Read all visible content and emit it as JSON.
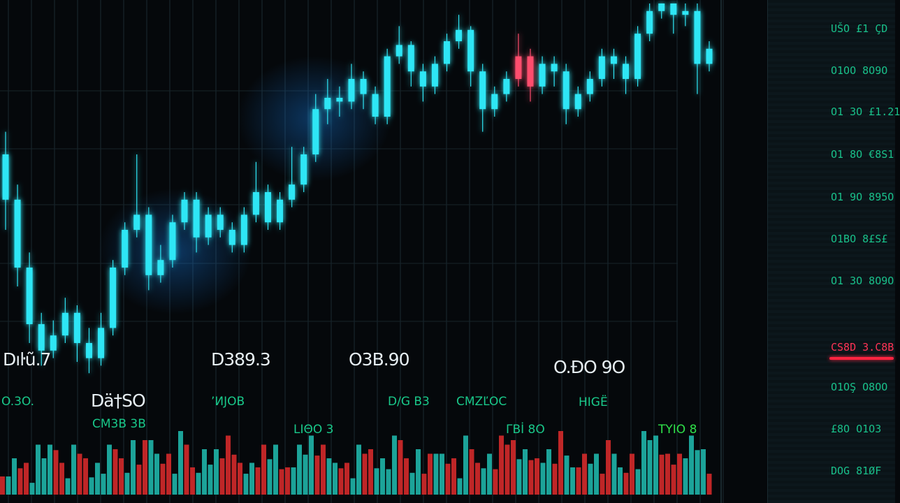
{
  "chart_data": {
    "type": "candlestick",
    "title": "",
    "xlabel": "",
    "ylabel": "",
    "ylim": [
      0,
      100
    ],
    "grid": true,
    "colors": {
      "up": "#2ee6f5",
      "down": "#ff4d6d",
      "volume_up": "#1fb5a8",
      "volume_down": "#d42a2a",
      "background": "#05080b"
    },
    "candles": [
      [
        60,
        66,
        40,
        48
      ],
      [
        48,
        52,
        25,
        30
      ],
      [
        30,
        34,
        10,
        15
      ],
      [
        15,
        18,
        4,
        8
      ],
      [
        8,
        16,
        6,
        12
      ],
      [
        12,
        22,
        10,
        18
      ],
      [
        18,
        20,
        5,
        10
      ],
      [
        10,
        14,
        2,
        6
      ],
      [
        6,
        18,
        4,
        14
      ],
      [
        14,
        32,
        12,
        30
      ],
      [
        30,
        42,
        28,
        40
      ],
      [
        40,
        60,
        38,
        44
      ],
      [
        44,
        46,
        24,
        28
      ],
      [
        28,
        36,
        26,
        32
      ],
      [
        32,
        44,
        30,
        42
      ],
      [
        42,
        50,
        40,
        48
      ],
      [
        48,
        50,
        34,
        38
      ],
      [
        38,
        46,
        36,
        44
      ],
      [
        44,
        46,
        38,
        40
      ],
      [
        40,
        42,
        34,
        36
      ],
      [
        36,
        46,
        34,
        44
      ],
      [
        44,
        58,
        42,
        50
      ],
      [
        50,
        52,
        40,
        42
      ],
      [
        42,
        50,
        40,
        48
      ],
      [
        48,
        62,
        46,
        52
      ],
      [
        52,
        62,
        50,
        60
      ],
      [
        60,
        76,
        58,
        72
      ],
      [
        72,
        80,
        68,
        75
      ],
      [
        75,
        78,
        70,
        74
      ],
      [
        74,
        84,
        72,
        80
      ],
      [
        80,
        82,
        72,
        76
      ],
      [
        76,
        78,
        68,
        70
      ],
      [
        70,
        88,
        68,
        86
      ],
      [
        86,
        94,
        84,
        89
      ],
      [
        89,
        90,
        78,
        82
      ],
      [
        82,
        84,
        74,
        78
      ],
      [
        78,
        86,
        76,
        84
      ],
      [
        84,
        92,
        82,
        90
      ],
      [
        90,
        97,
        88,
        93
      ],
      [
        93,
        94,
        78,
        82
      ],
      [
        82,
        84,
        66,
        72
      ],
      [
        72,
        78,
        70,
        76
      ],
      [
        76,
        82,
        74,
        80
      ],
      [
        80,
        92,
        78,
        86
      ],
      [
        86,
        88,
        74,
        78
      ],
      [
        78,
        86,
        76,
        84
      ],
      [
        84,
        86,
        78,
        82
      ],
      [
        82,
        84,
        68,
        72
      ],
      [
        72,
        78,
        70,
        76
      ],
      [
        76,
        82,
        74,
        80
      ],
      [
        80,
        88,
        78,
        86
      ],
      [
        86,
        88,
        80,
        84
      ],
      [
        84,
        86,
        76,
        80
      ],
      [
        80,
        94,
        78,
        92
      ],
      [
        92,
        100,
        90,
        98
      ],
      [
        98,
        102,
        96,
        100
      ],
      [
        100,
        102,
        92,
        97
      ],
      [
        97,
        100,
        94,
        98
      ],
      [
        98,
        100,
        76,
        84
      ],
      [
        84,
        90,
        82,
        88
      ]
    ],
    "down_candles": [
      43,
      44
    ],
    "volume": [
      20,
      35,
      25,
      40,
      55,
      30,
      45,
      25,
      35,
      50,
      30,
      45,
      60,
      40,
      35,
      55,
      30,
      45,
      40,
      50,
      35,
      30,
      45,
      40,
      30,
      50,
      55,
      40,
      35,
      30,
      45,
      35,
      40,
      60,
      30,
      35,
      45,
      40,
      30,
      50,
      35,
      40,
      55,
      45,
      50,
      35,
      40,
      55,
      30,
      40,
      35,
      45,
      30,
      40,
      60,
      50,
      45,
      40,
      55,
      35
    ],
    "volume_colors": [
      "d",
      "u",
      "d",
      "u",
      "u",
      "d",
      "u",
      "d",
      "u",
      "u",
      "d",
      "u",
      "d",
      "u",
      "d",
      "u",
      "d",
      "u",
      "u",
      "d",
      "d",
      "u",
      "d",
      "u",
      "d",
      "u",
      "u",
      "d",
      "u",
      "d",
      "u",
      "d",
      "u",
      "u",
      "d",
      "u",
      "d",
      "u",
      "d",
      "u",
      "d",
      "u",
      "d",
      "d",
      "u",
      "d",
      "u",
      "d",
      "u",
      "d",
      "u",
      "d",
      "u",
      "d",
      "u",
      "u",
      "d",
      "d",
      "u",
      "u"
    ]
  },
  "overlay_labels": {
    "big": [
      "Dıŀũ.7",
      "D389.3",
      "O3B.90",
      "O.ÐO 9O",
      "Dä†SO"
    ],
    "green": [
      "O.3O.",
      "ʼИJOB",
      "CM3B 3B",
      "D/G B3",
      "CMZĽOC",
      "HIGË",
      "LIΘO 3",
      "ΓBİ 8O"
    ],
    "lime": [
      "TYIO 8"
    ]
  },
  "price_panel": {
    "labels": [
      "UŠO £1 ÇD",
      "O1OO 8O9O",
      "O1 3O £1.21",
      "O1 8O €8S1",
      "O1 9O 895O",
      "O1BO 8£S£",
      "O1 3O 8O9O",
      "CS8D 3.C8B",
      "O1OŞ O8OO",
      "£8O O1O3",
      "DOG 81ØF"
    ],
    "highlighted_index": 7
  }
}
